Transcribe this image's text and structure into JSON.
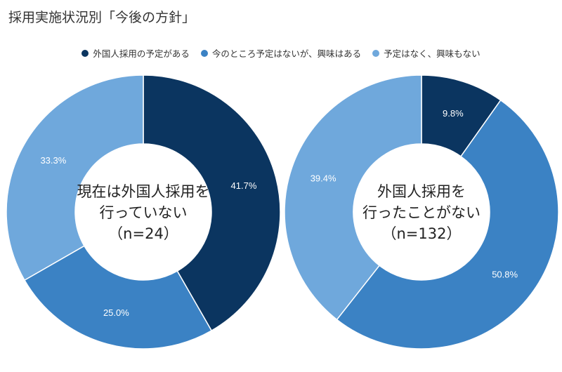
{
  "title": "採用実施状況別「今後の方針」",
  "legend": [
    {
      "label": "外国人採用の予定がある",
      "color": "#0b3560"
    },
    {
      "label": "今のところ予定はないが、興味はある",
      "color": "#3b82c4"
    },
    {
      "label": "予定はなく、興味もない",
      "color": "#6fa8dc"
    }
  ],
  "chart_data": [
    {
      "type": "pie",
      "donut": true,
      "center_label": [
        "現在は外国人採用を",
        "行っていない",
        "（n=24）"
      ],
      "categories": [
        "外国人採用の予定がある",
        "今のところ予定はないが、興味はある",
        "予定はなく、興味もない"
      ],
      "values": [
        41.7,
        25.0,
        33.3
      ],
      "labels": [
        "41.7%",
        "25.0%",
        "33.3%"
      ],
      "colors": [
        "#0b3560",
        "#3b82c4",
        "#6fa8dc"
      ]
    },
    {
      "type": "pie",
      "donut": true,
      "center_label": [
        "外国人採用を",
        "行ったことがない",
        "（n=132）"
      ],
      "categories": [
        "外国人採用の予定がある",
        "今のところ予定はないが、興味はある",
        "予定はなく、興味もない"
      ],
      "values": [
        9.8,
        50.8,
        39.4
      ],
      "labels": [
        "9.8%",
        "50.8%",
        "39.4%"
      ],
      "colors": [
        "#0b3560",
        "#3b82c4",
        "#6fa8dc"
      ]
    }
  ]
}
